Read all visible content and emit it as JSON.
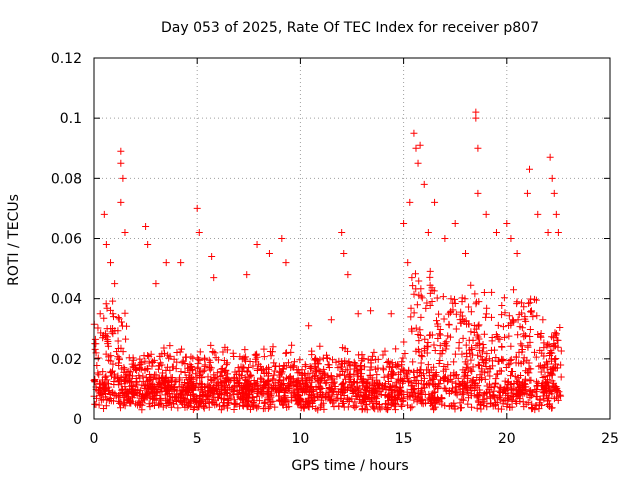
{
  "chart_data": {
    "type": "scatter",
    "title": "Day 053 of 2025, Rate Of TEC Index for receiver p807",
    "xlabel": "GPS time / hours",
    "ylabel": "ROTI / TECUs",
    "xlim": [
      0,
      25
    ],
    "ylim": [
      0,
      0.12
    ],
    "x_ticks": [
      0,
      5,
      10,
      15,
      20,
      25
    ],
    "y_ticks": [
      0,
      0.02,
      0.04,
      0.06,
      0.08,
      0.1,
      0.12
    ],
    "x_tick_labels": [
      "0",
      "5",
      "10",
      "15",
      "20",
      "25"
    ],
    "y_tick_labels": [
      "0",
      "0.02",
      "0.04",
      "0.06",
      "0.08",
      "0.1",
      "0.12"
    ],
    "grid": true,
    "marker": "+",
    "color": "#ff0000",
    "series": [
      {
        "name": "ROTI",
        "points": [
          [
            0.1,
            0.022
          ],
          [
            0.3,
            0.035
          ],
          [
            0.5,
            0.068
          ],
          [
            0.6,
            0.058
          ],
          [
            0.8,
            0.052
          ],
          [
            1.0,
            0.045
          ],
          [
            1.3,
            0.089
          ],
          [
            1.3,
            0.085
          ],
          [
            1.4,
            0.08
          ],
          [
            1.3,
            0.072
          ],
          [
            1.5,
            0.062
          ],
          [
            2.5,
            0.064
          ],
          [
            2.6,
            0.058
          ],
          [
            3.0,
            0.045
          ],
          [
            3.5,
            0.052
          ],
          [
            4.2,
            0.052
          ],
          [
            5.0,
            0.07
          ],
          [
            5.1,
            0.062
          ],
          [
            5.7,
            0.054
          ],
          [
            5.8,
            0.047
          ],
          [
            7.4,
            0.048
          ],
          [
            7.9,
            0.058
          ],
          [
            8.5,
            0.055
          ],
          [
            9.1,
            0.06
          ],
          [
            9.3,
            0.052
          ],
          [
            10.4,
            0.031
          ],
          [
            11.5,
            0.033
          ],
          [
            12.0,
            0.062
          ],
          [
            12.1,
            0.055
          ],
          [
            12.3,
            0.048
          ],
          [
            12.8,
            0.035
          ],
          [
            13.4,
            0.036
          ],
          [
            14.4,
            0.035
          ],
          [
            15.0,
            0.065
          ],
          [
            15.2,
            0.052
          ],
          [
            15.3,
            0.072
          ],
          [
            15.5,
            0.095
          ],
          [
            15.6,
            0.09
          ],
          [
            15.7,
            0.085
          ],
          [
            15.8,
            0.091
          ],
          [
            16.0,
            0.078
          ],
          [
            16.2,
            0.062
          ],
          [
            16.5,
            0.072
          ],
          [
            17.0,
            0.06
          ],
          [
            17.5,
            0.065
          ],
          [
            18.0,
            0.055
          ],
          [
            18.5,
            0.102
          ],
          [
            18.5,
            0.1
          ],
          [
            18.6,
            0.09
          ],
          [
            18.6,
            0.075
          ],
          [
            19.0,
            0.068
          ],
          [
            19.5,
            0.062
          ],
          [
            20.0,
            0.065
          ],
          [
            20.2,
            0.06
          ],
          [
            20.5,
            0.055
          ],
          [
            21.0,
            0.075
          ],
          [
            21.1,
            0.083
          ],
          [
            21.5,
            0.068
          ],
          [
            22.0,
            0.062
          ],
          [
            22.1,
            0.087
          ],
          [
            22.2,
            0.08
          ],
          [
            22.3,
            0.075
          ],
          [
            22.4,
            0.068
          ],
          [
            22.5,
            0.062
          ]
        ]
      }
    ]
  }
}
